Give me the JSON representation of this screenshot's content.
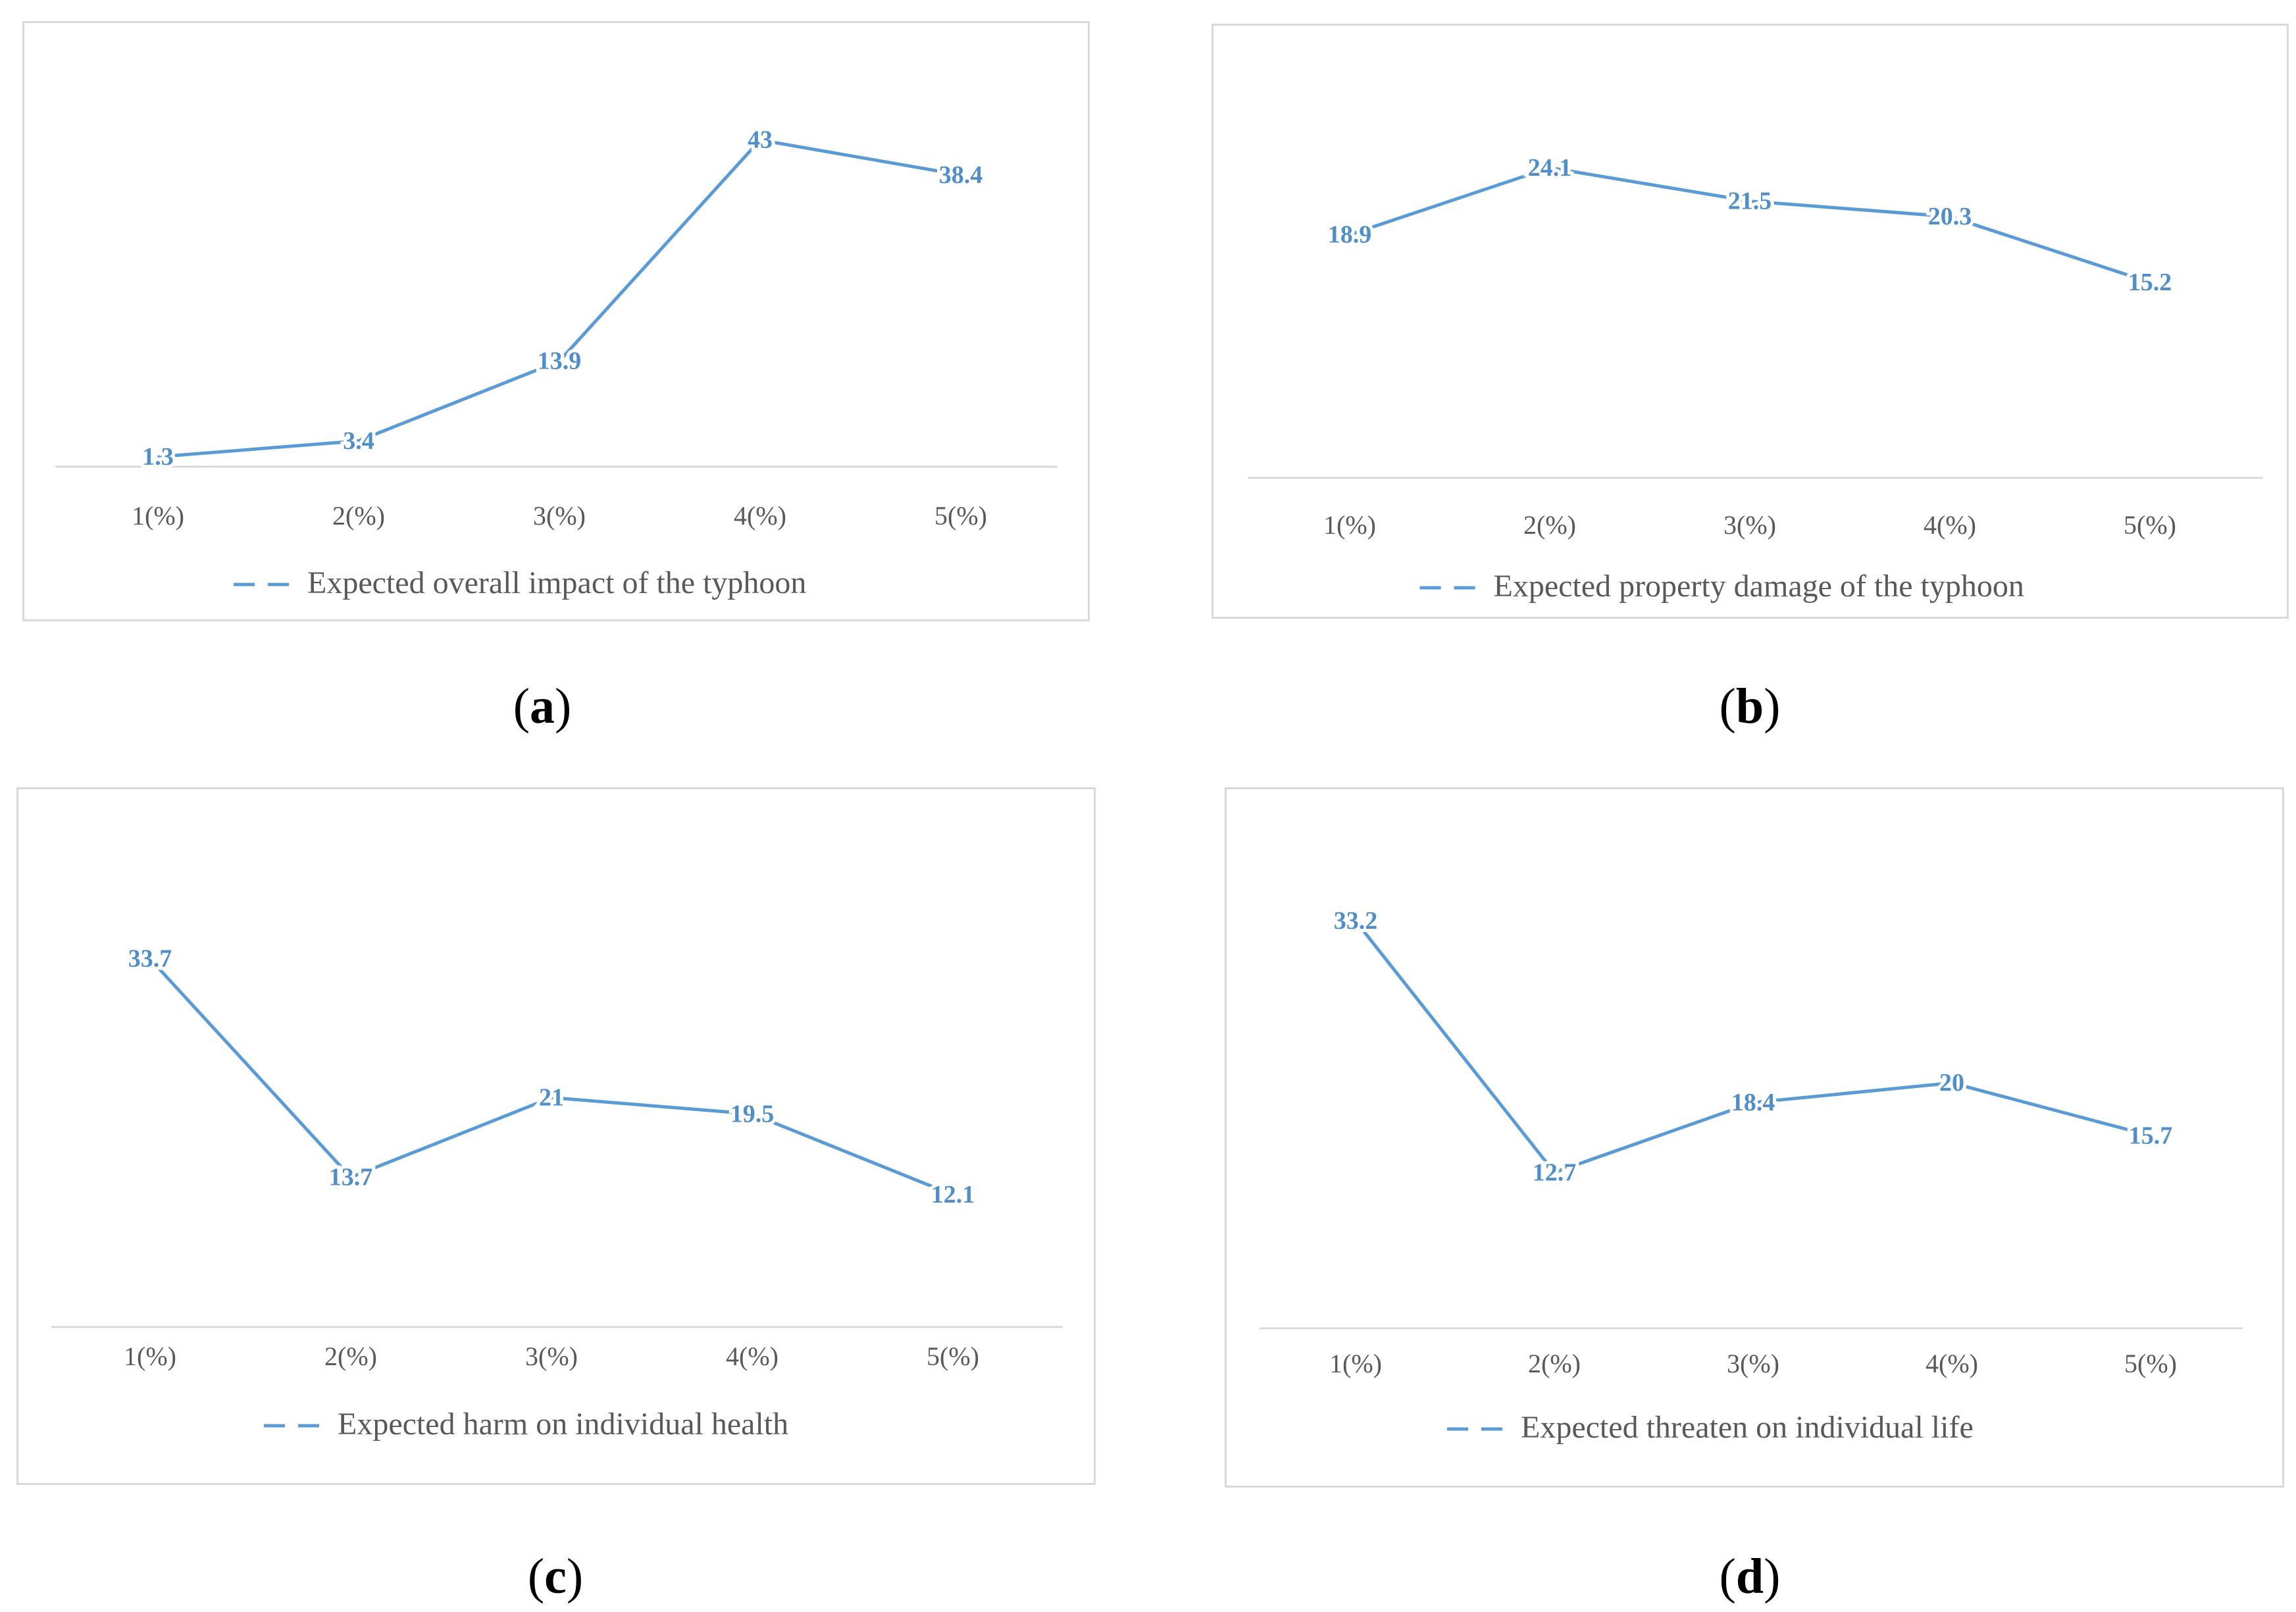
{
  "colors": {
    "line": "#5b9bd5",
    "label": "#4f8ec9",
    "axis": "#d9d9d9",
    "tick": "#595959",
    "border": "#d9d9d9"
  },
  "chart_data": [
    {
      "type": "line",
      "caption": "a",
      "categories": [
        "1(%)",
        "2(%)",
        "3(%)",
        "4(%)",
        "5(%)"
      ],
      "series": [
        {
          "name": "Expected overall impact of the typhoon",
          "values": [
            1.3,
            3.4,
            13.9,
            43,
            38.4
          ]
        }
      ],
      "data_labels": [
        "1.3",
        "3.4",
        "13.9",
        "43",
        "38.4"
      ],
      "legend": "bottom",
      "grid": false,
      "ylim": [
        0,
        48
      ]
    },
    {
      "type": "line",
      "caption": "b",
      "categories": [
        "1(%)",
        "2(%)",
        "3(%)",
        "4(%)",
        "5(%)"
      ],
      "series": [
        {
          "name": "Expected property damage of the typhoon",
          "values": [
            18.9,
            24.1,
            21.5,
            20.3,
            15.2
          ]
        }
      ],
      "data_labels": [
        "18.9",
        "24.1",
        "21.5",
        "20.3",
        "15.2"
      ],
      "legend": "bottom",
      "grid": false,
      "ylim": [
        0,
        29
      ]
    },
    {
      "type": "line",
      "caption": "c",
      "categories": [
        "1(%)",
        "2(%)",
        "3(%)",
        "4(%)",
        "5(%)"
      ],
      "series": [
        {
          "name": "Expected harm on individual health",
          "values": [
            33.7,
            13.7,
            21,
            19.5,
            12.1
          ]
        }
      ],
      "data_labels": [
        "33.7",
        "13.7",
        "21",
        "19.5",
        "12.1"
      ],
      "legend": "bottom",
      "grid": false,
      "ylim": [
        0,
        42
      ]
    },
    {
      "type": "line",
      "caption": "d",
      "categories": [
        "1(%)",
        "2(%)",
        "3(%)",
        "4(%)",
        "5(%)"
      ],
      "series": [
        {
          "name": "Expected threaten on individual life",
          "values": [
            33.2,
            12.7,
            18.4,
            20,
            15.7
          ]
        }
      ],
      "data_labels": [
        "33.2",
        "12.7",
        "18.4",
        "20",
        "15.7"
      ],
      "legend": "bottom",
      "grid": false,
      "ylim": [
        0,
        37.5
      ]
    }
  ]
}
